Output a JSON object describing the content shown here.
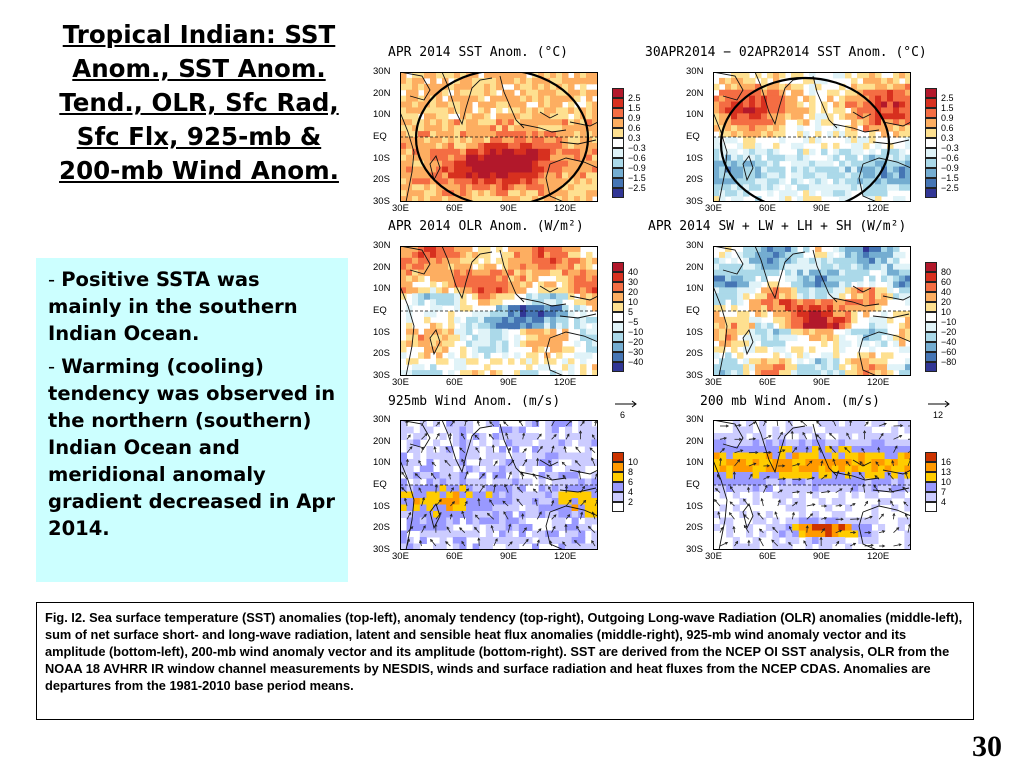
{
  "title_lines": [
    "Tropical Indian: SST",
    "Anom., SST Anom.",
    "Tend., OLR, Sfc Rad,",
    "Sfc Flx, 925-mb &",
    "200-mb Wind Anom."
  ],
  "bullets": [
    {
      "dash": "- ",
      "text": "Positive SSTA was mainly in the southern Indian Ocean."
    },
    {
      "dash": "- ",
      "text": "Warming (cooling) tendency was observed in the northern (southern) Indian Ocean and meridional anomaly gradient decreased in Apr 2014."
    }
  ],
  "caption": "Fig. I2. Sea surface temperature (SST) anomalies (top-left), anomaly tendency (top-right), Outgoing Long-wave Radiation (OLR) anomalies (middle-left), sum of net surface short- and long-wave radiation, latent and sensible heat flux anomalies (middle-right), 925-mb wind anomaly vector and its amplitude (bottom-left), 200-mb wind anomaly vector and its amplitude  (bottom-right). SST are derived from the NCEP OI SST analysis, OLR from the NOAA 18 AVHRR IR window channel measurements by NESDIS, winds and surface radiation and heat fluxes from the NCEP CDAS. Anomalies are  departures from the 1981-2010 base period means.",
  "page_number": "30",
  "y_ticks": [
    "30N",
    "20N",
    "10N",
    "EQ",
    "10S",
    "20S",
    "30S"
  ],
  "x_ticks": [
    "30E",
    "60E",
    "90E",
    "120E"
  ],
  "panels": [
    {
      "title": "APR 2014 SST Anom. (°C)",
      "kind": "sst",
      "colorbar": [
        "2.5",
        "1.5",
        "0.9",
        "0.6",
        "0.3",
        "−0.3",
        "−0.6",
        "−0.9",
        "−1.5",
        "−2.5"
      ]
    },
    {
      "title": "30APR2014 − 02APR2014 SST Anom. (°C)",
      "kind": "tend",
      "colorbar": [
        "2.5",
        "1.5",
        "0.9",
        "0.6",
        "0.3",
        "−0.3",
        "−0.6",
        "−0.9",
        "−1.5",
        "−2.5"
      ]
    },
    {
      "title": "APR 2014 OLR Anom. (W/m²)",
      "kind": "olr",
      "colorbar": [
        "40",
        "30",
        "20",
        "10",
        "5",
        "−5",
        "−10",
        "−20",
        "−30",
        "−40"
      ]
    },
    {
      "title": "APR 2014 SW + LW + LH + SH (W/m²)",
      "kind": "flux",
      "colorbar": [
        "80",
        "60",
        "40",
        "20",
        "10",
        "−10",
        "−20",
        "−40",
        "−60",
        "−80"
      ]
    },
    {
      "title": "925mb Wind Anom. (m/s)",
      "kind": "w925",
      "ref": "6",
      "colorbar": [
        "10",
        "8",
        "6",
        "4",
        "2"
      ]
    },
    {
      "title": "200 mb Wind Anom. (m/s)",
      "kind": "w200",
      "ref": "12",
      "colorbar": [
        "16",
        "13",
        "10",
        "7",
        "4"
      ]
    }
  ],
  "colors": {
    "bullet_bg": "#ccffff",
    "warm": [
      "#b2182b",
      "#d7301f",
      "#f46d43",
      "#fdae61",
      "#fee090"
    ],
    "cool": [
      "#e0f3f8",
      "#abd9e9",
      "#74add1",
      "#4575b4",
      "#313695"
    ],
    "wind": [
      "#cc3300",
      "#ff9900",
      "#ffcc00",
      "#9999ff",
      "#ccccff"
    ]
  }
}
